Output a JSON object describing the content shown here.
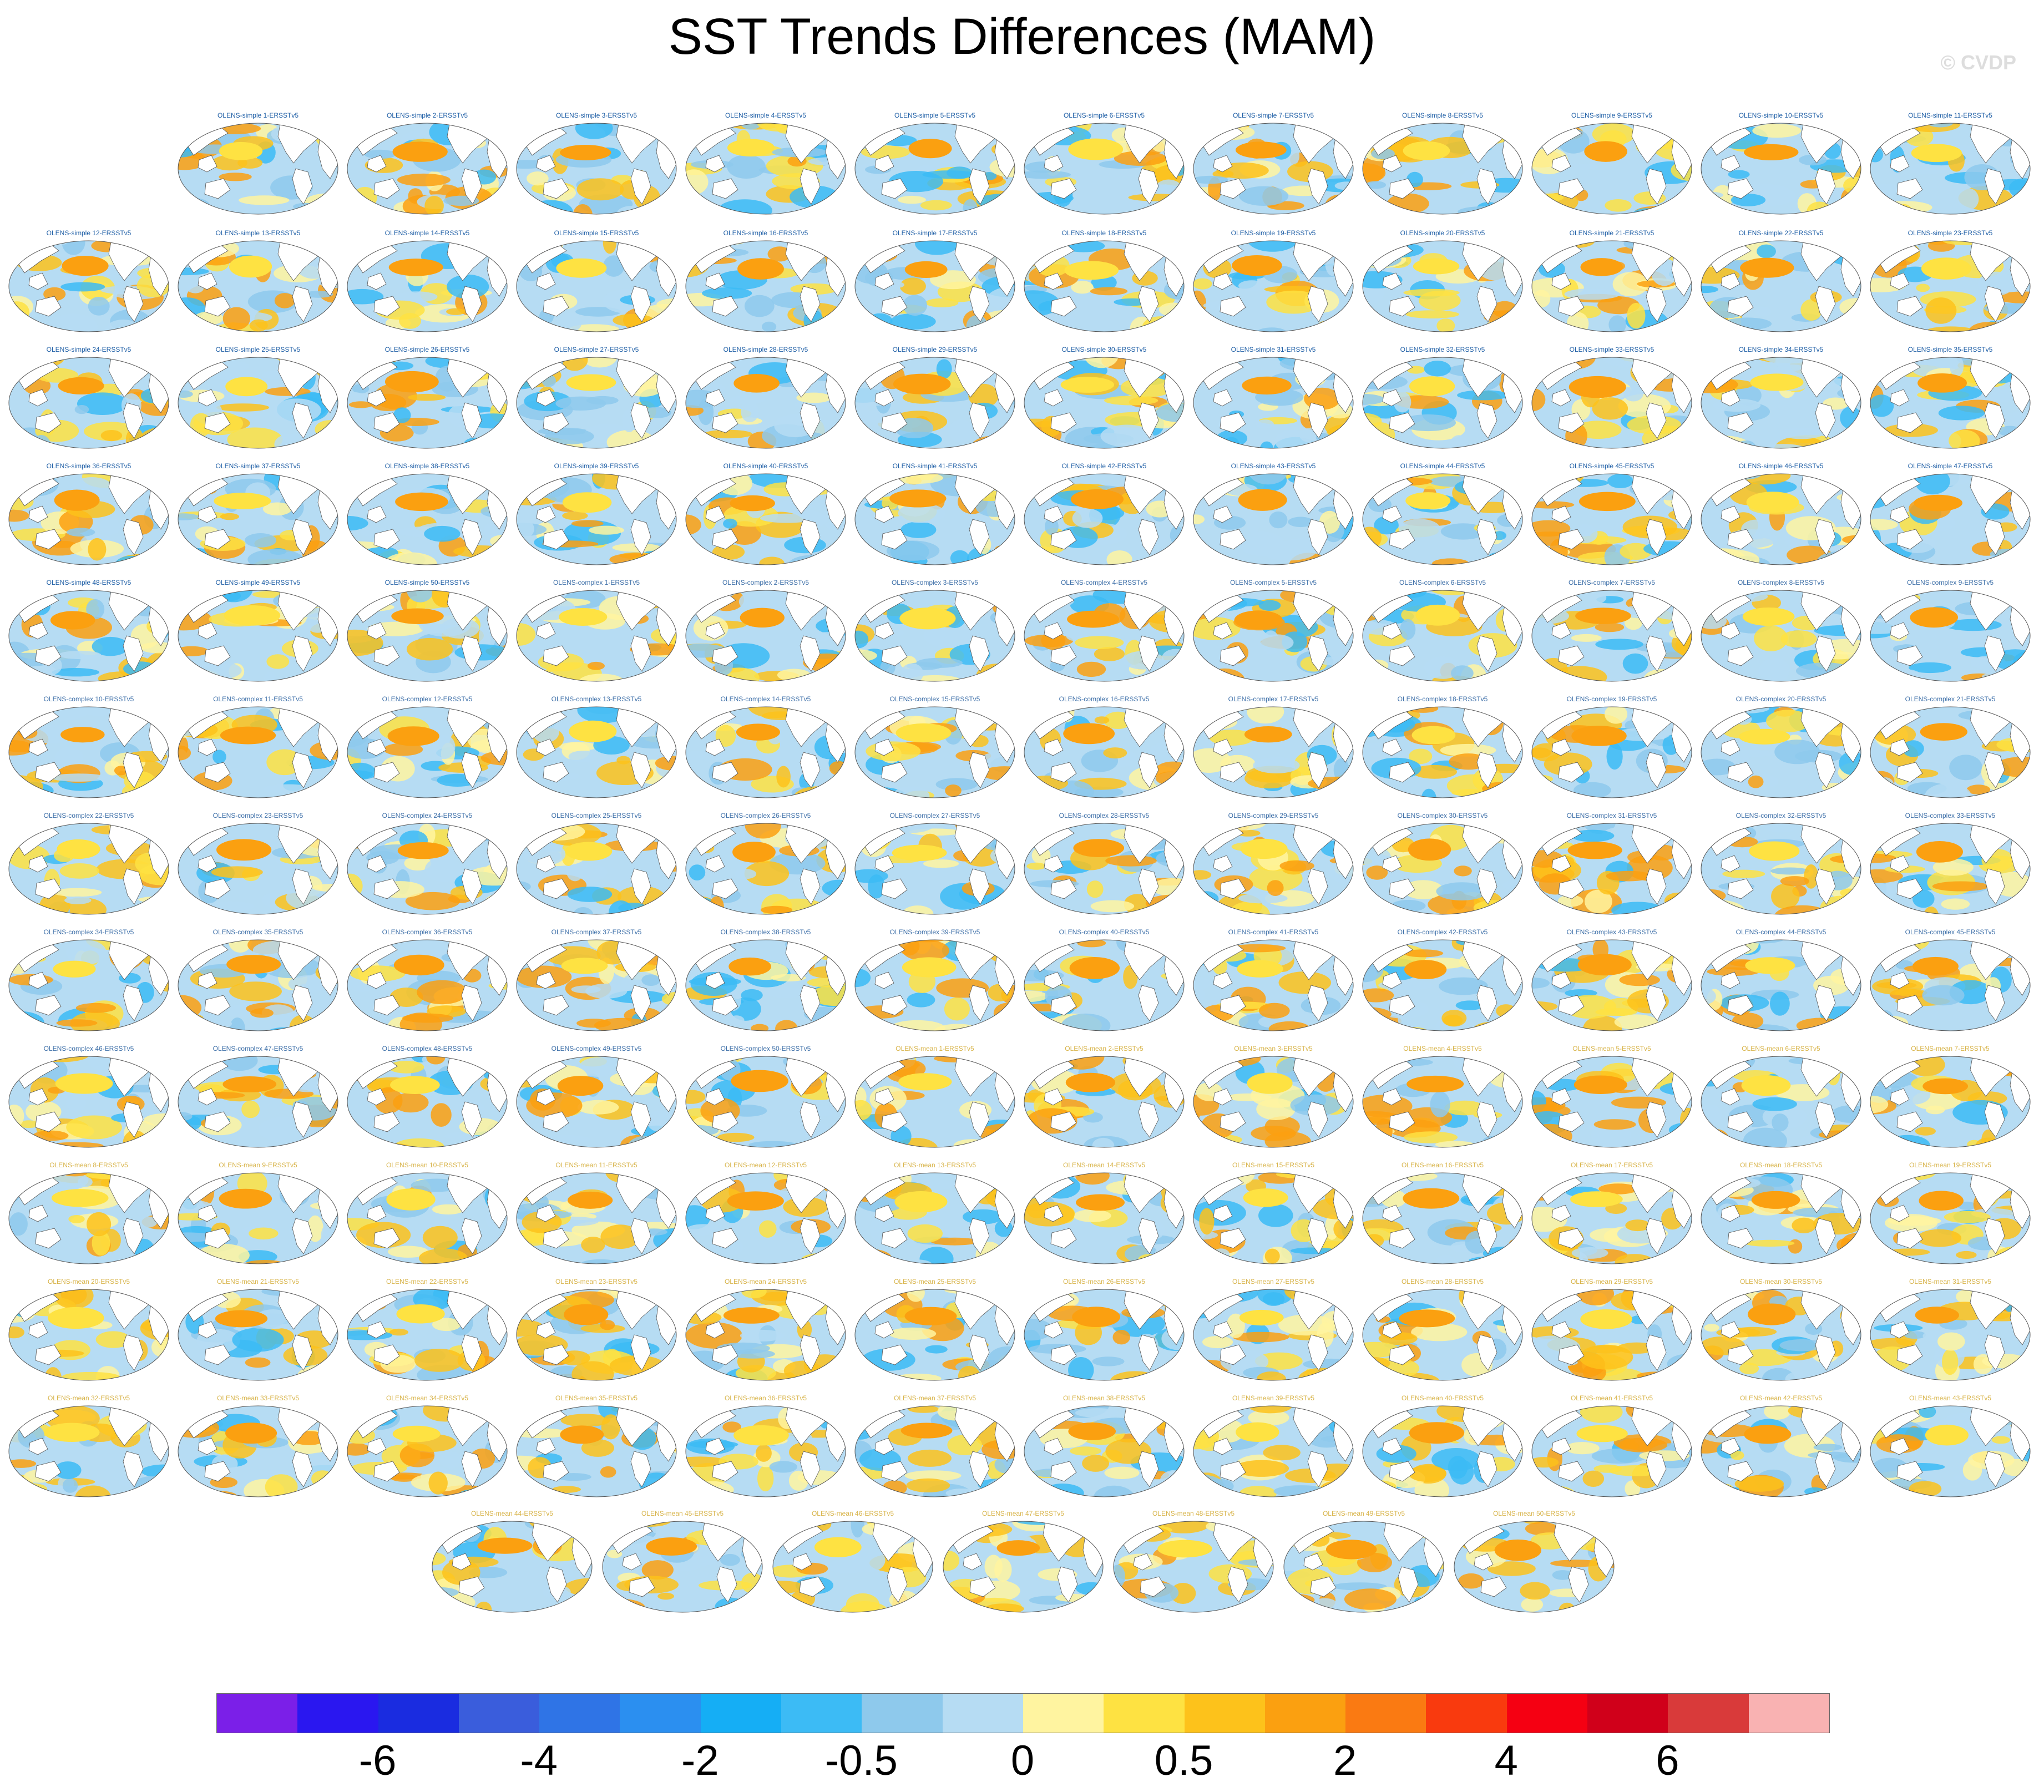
{
  "title": "SST Trends Differences (MAM)",
  "watermark": "© CVDP",
  "groups": [
    {
      "prefix": "OLENS-simple ",
      "suffix": "-ERSSTv5",
      "count": 50,
      "label_color": "#1f5fa6"
    },
    {
      "prefix": "OLENS-complex ",
      "suffix": "-ERSSTv5",
      "count": 50,
      "label_color": "#3d6fa8"
    },
    {
      "prefix": "OLENS-mean ",
      "suffix": "-ERSSTv5",
      "count": 50,
      "label_color": "#d8b44a"
    }
  ],
  "colorbar": {
    "colors": [
      "#7b1fe8",
      "#2a17f0",
      "#1a2ce0",
      "#3a5ddc",
      "#2f74e6",
      "#2b8ff0",
      "#15aef5",
      "#3cbbf5",
      "#8ec9ec",
      "#b6dcf3",
      "#fff4a0",
      "#fee242",
      "#fdc21b",
      "#fba010",
      "#fa7a12",
      "#f93a0e",
      "#f50012",
      "#d0001a",
      "#d93a3a",
      "#f9b2b2"
    ],
    "tick_labels": [
      "-6",
      "-4",
      "-2",
      "-0.5",
      "0",
      "0.5",
      "2",
      "4",
      "6"
    ],
    "tick_boundaries": [
      2,
      4,
      6,
      8,
      10,
      12,
      14,
      16,
      18
    ]
  }
}
